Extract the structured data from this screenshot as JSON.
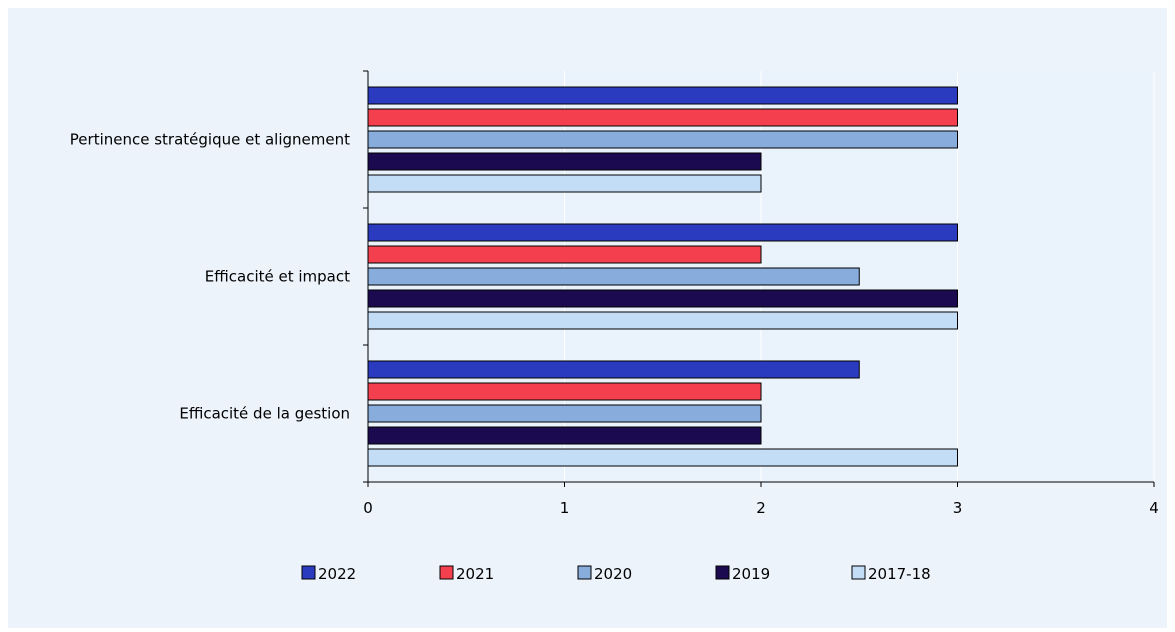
{
  "chart_data": {
    "type": "bar",
    "orientation": "horizontal",
    "categories": [
      "Pertinence stratégique et alignement",
      "Efficacité et impact",
      "Efficacité de la gestion"
    ],
    "series": [
      {
        "name": "2022",
        "color": "#2b3bbf",
        "values": [
          3,
          3,
          2.5
        ]
      },
      {
        "name": "2021",
        "color": "#f4404e",
        "values": [
          3,
          2,
          2
        ]
      },
      {
        "name": "2020",
        "color": "#88acdc",
        "values": [
          3,
          2.5,
          2
        ]
      },
      {
        "name": "2019",
        "color": "#1b0a4f",
        "values": [
          2,
          3,
          2
        ]
      },
      {
        "name": "2017-18",
        "color": "#c4ddf6",
        "values": [
          2,
          3,
          3
        ]
      }
    ],
    "xlim": [
      0,
      4
    ],
    "xticks": [
      "0",
      "1",
      "2",
      "3",
      "4"
    ],
    "grid": "vertical",
    "legend_position": "bottom",
    "title": "",
    "xlabel": "",
    "ylabel": ""
  },
  "colors": {
    "background": "#edf3fb",
    "plot_area": "#eaf3fc",
    "gridline": "#ffffff",
    "bar_outline": "#000000"
  }
}
